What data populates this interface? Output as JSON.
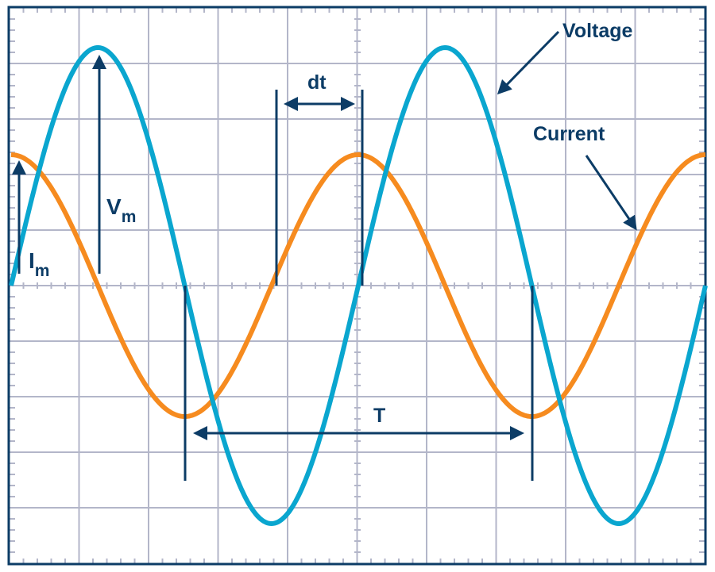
{
  "colors": {
    "voltage": "#0aa6cf",
    "current": "#f68b1f",
    "annotation": "#0c3c66",
    "grid": "#b3b6c9",
    "frame": "#0c3c66"
  },
  "chart_data": {
    "type": "line",
    "grid": true,
    "grid_divisions": {
      "x": 10,
      "y": 10
    },
    "series": [
      {
        "name": "Voltage",
        "amplitude": 1.0,
        "phase_deg": 0,
        "cycles": 2.0
      },
      {
        "name": "Current",
        "amplitude": 0.55,
        "phase_deg": 90,
        "cycles": 2.0
      }
    ]
  },
  "labels": {
    "voltage": "Voltage",
    "current": "Current",
    "vm_main": "V",
    "vm_sub": "m",
    "im_main": "I",
    "im_sub": "m",
    "dt": "dt",
    "period": "T"
  }
}
